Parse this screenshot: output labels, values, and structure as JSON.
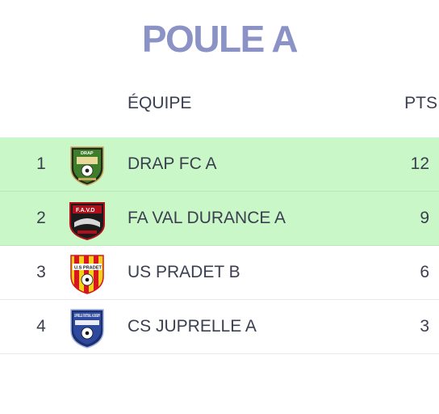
{
  "title": "POULE A",
  "columns": {
    "team": "ÉQUIPE",
    "points": "PTS"
  },
  "colors": {
    "title": "#8a92c6",
    "qualified_row": "#c9f7c7",
    "text": "#3b3f4f"
  },
  "standings": [
    {
      "rank": "1",
      "team": "DRAP FC A",
      "points": "12",
      "logo_icon": "drap-fc-crest-icon",
      "logo_text": "DRAP",
      "qualified": true
    },
    {
      "rank": "2",
      "team": "FA VAL DURANCE A",
      "points": "9",
      "logo_icon": "fa-val-durance-crest-icon",
      "logo_text": "F.A.V.D",
      "qualified": true
    },
    {
      "rank": "3",
      "team": "US PRADET B",
      "points": "6",
      "logo_icon": "us-pradet-crest-icon",
      "logo_text": "U.S PRADET",
      "qualified": false
    },
    {
      "rank": "4",
      "team": "CS JUPRELLE A",
      "points": "3",
      "logo_icon": "cs-juprelle-crest-icon",
      "logo_text": "JUPRELLE FOOTBALL ACADEMY",
      "qualified": false
    }
  ]
}
